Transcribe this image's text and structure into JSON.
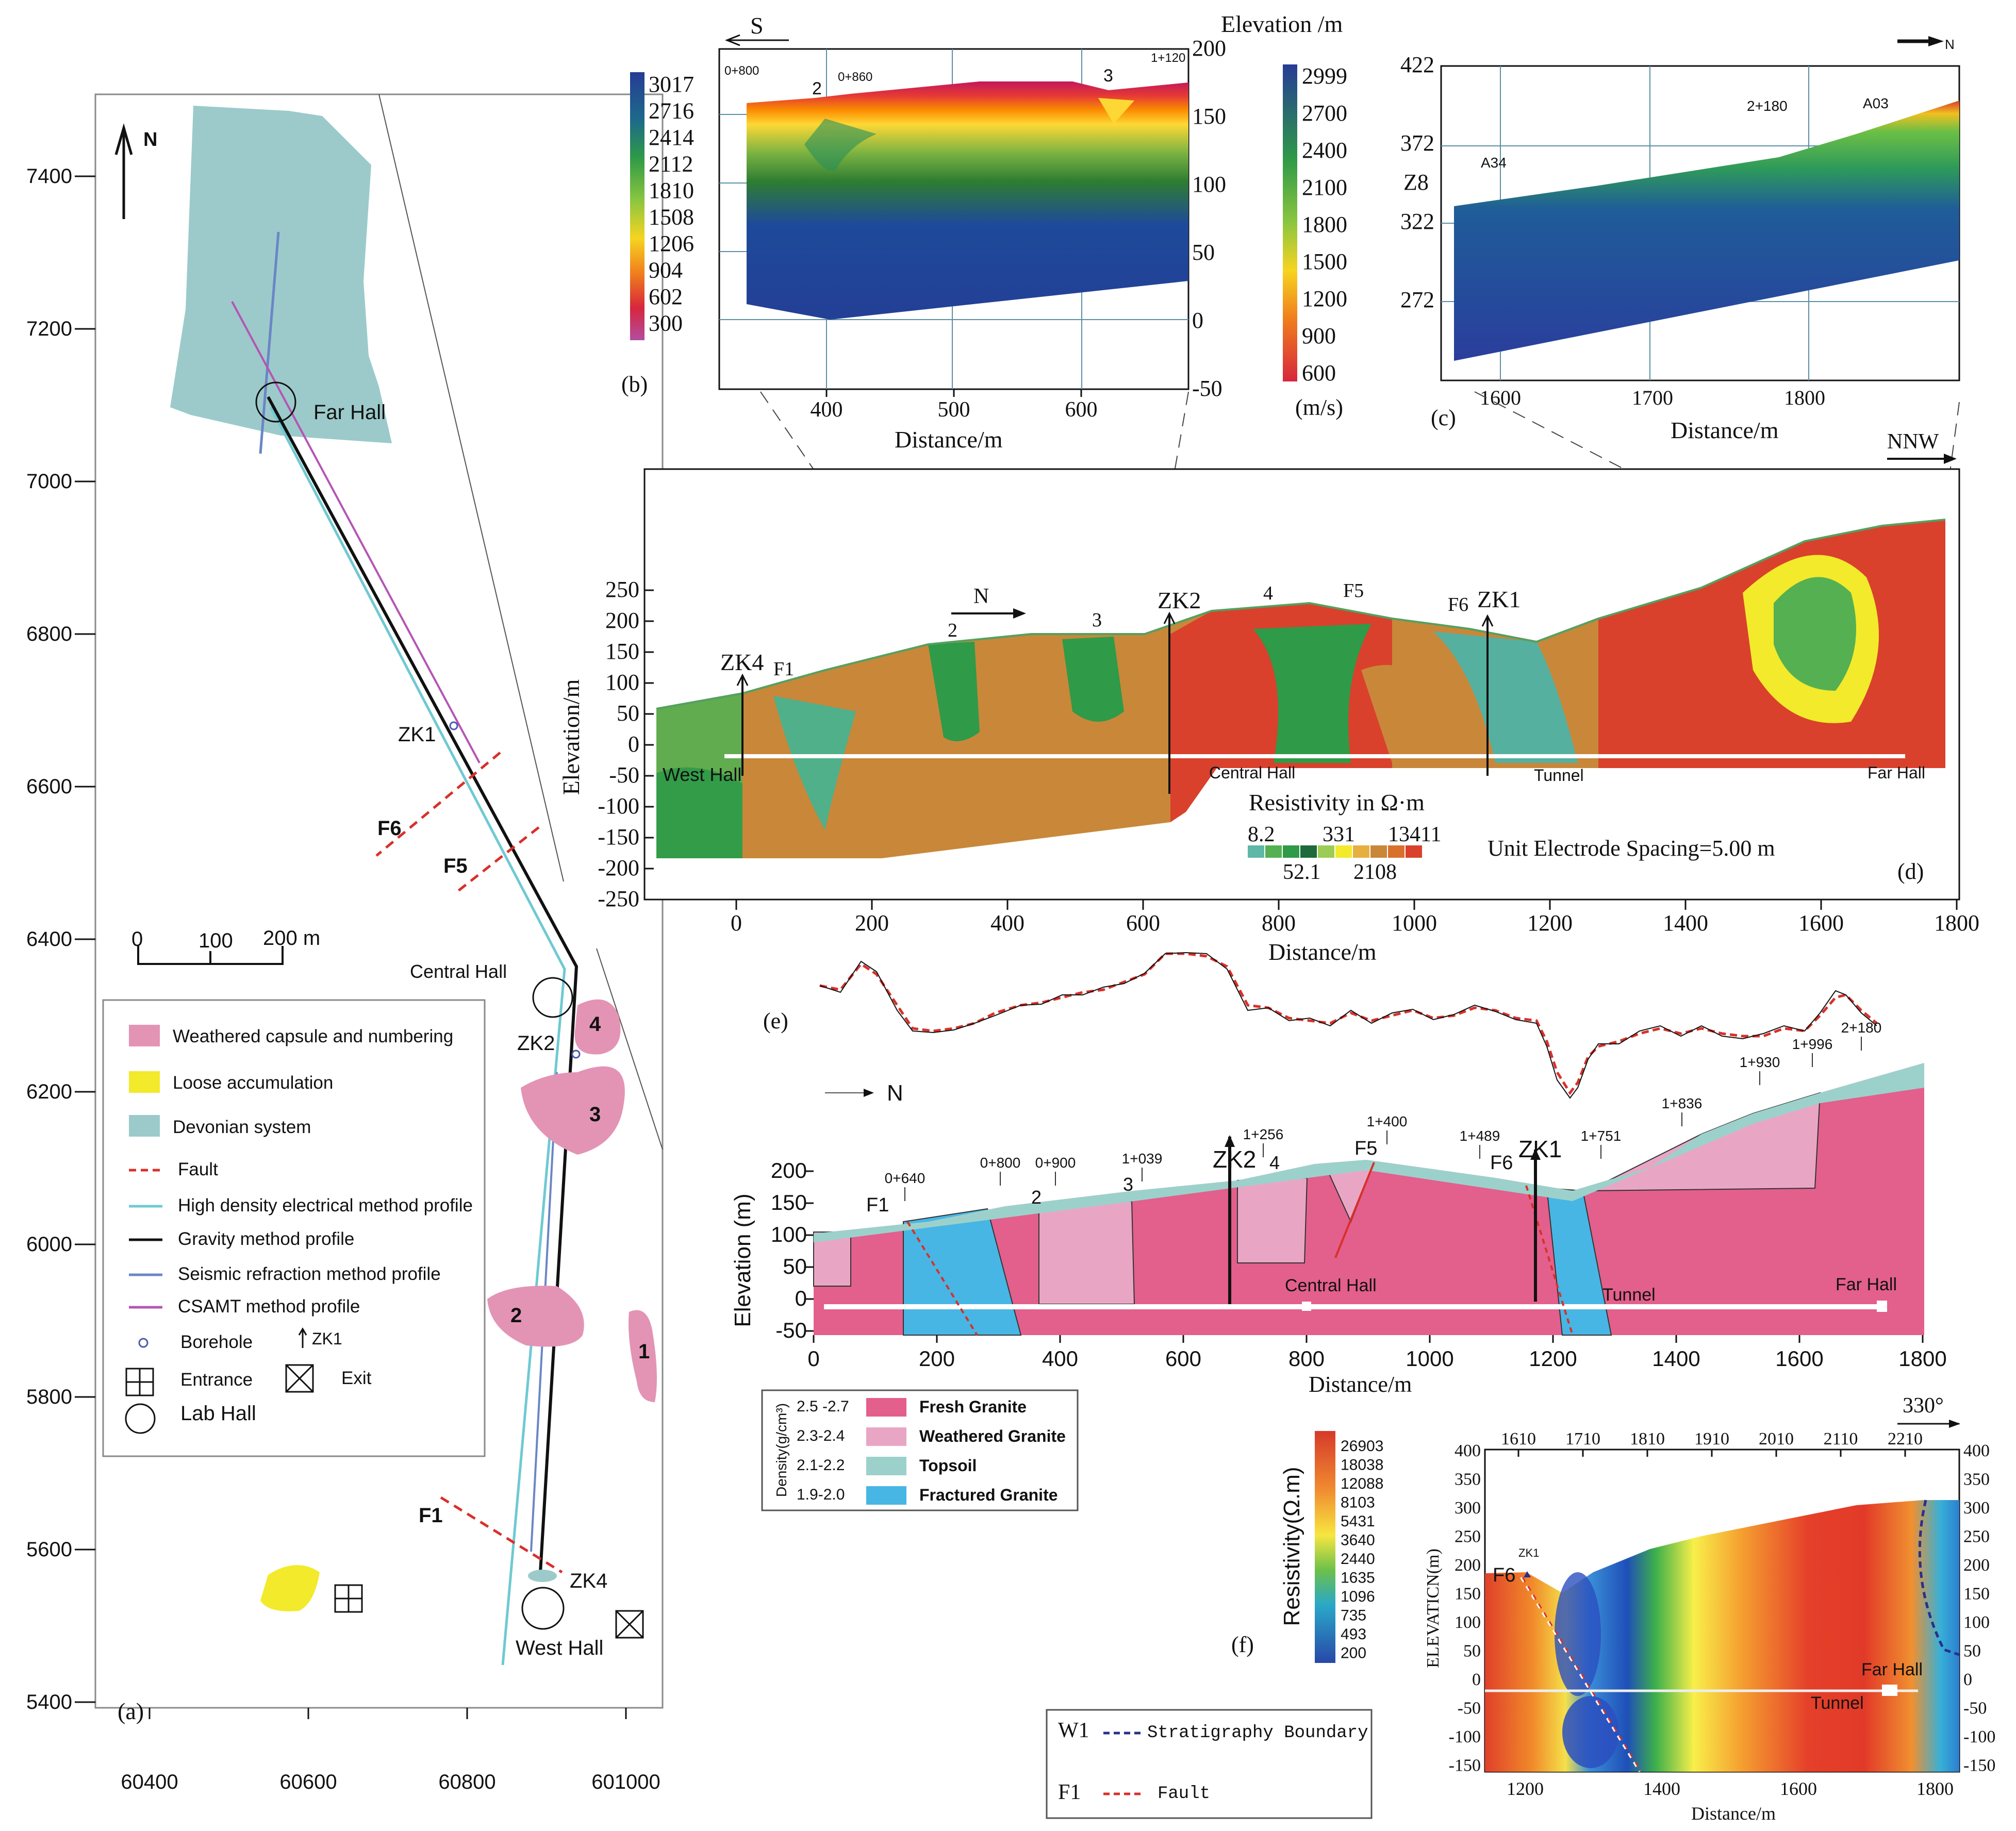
{
  "colors": {
    "devonian": "#9ccaca",
    "capsule": "#e394b4",
    "loose": "#f2ea2a",
    "fault": "#d8302a",
    "high_density": "#6fc9d2",
    "gravity": "#111111",
    "seismic": "#6a86c6",
    "csamt": "#b455b4",
    "fresh": "#e35f8c",
    "weathered": "#e9a6c4",
    "topsoil": "#9cd1cb",
    "fractured": "#47b6e4",
    "velocity_low": "#d81b60",
    "velocity_high": "#23409a",
    "res_brown": "#c9873a",
    "res_red": "#d9412c"
  },
  "panel_a": {
    "label": "(a)",
    "north": "N",
    "x_ticks": [
      "60400",
      "60600",
      "60800",
      "601000"
    ],
    "y_ticks": [
      "7400",
      "7200",
      "7000",
      "6800",
      "6600",
      "6400",
      "6200",
      "6000",
      "5800",
      "5600",
      "5400"
    ],
    "scale_labels": [
      "0",
      "100",
      "200 m"
    ],
    "places": {
      "far_hall": "Far Hall",
      "central_hall": "Central Hall",
      "west_hall": "West Hall",
      "zk1": "ZK1",
      "zk2": "ZK2",
      "zk4": "ZK4"
    },
    "faults": [
      "F6",
      "F5",
      "F1"
    ],
    "capsules": [
      "4",
      "3",
      "2",
      "1"
    ],
    "legend": {
      "capsule": "Weathered capsule and numbering",
      "loose": "Loose accumulation",
      "devonian": "Devonian system",
      "fault": "Fault",
      "high_density": "High density electrical method profile",
      "gravity": "Gravity method profile",
      "seismic": "Seismic refraction method profile",
      "csamt": "CSAMT method profile",
      "borehole": "Borehole",
      "borehole_tag": "ZK1",
      "entrance": "Entrance",
      "exit": "Exit",
      "lab_hall": "Lab Hall"
    }
  },
  "panel_b": {
    "label": "(b)",
    "direction": "S",
    "axis_title": "Elevation /m",
    "x_label": "Distance/m",
    "x_ticks": [
      "400",
      "500",
      "600"
    ],
    "y_ticks": [
      "200",
      "150",
      "100",
      "50",
      "0",
      "-50"
    ],
    "stations": [
      "0+800",
      "0+860",
      "1+120"
    ],
    "capsules": [
      "2",
      "3"
    ],
    "colorbar_left": [
      "3017",
      "2716",
      "2414",
      "2112",
      "1810",
      "1508",
      "1206",
      "904",
      "602",
      "300"
    ],
    "colorbar_right": [
      "2999",
      "2700",
      "2400",
      "2100",
      "1800",
      "1500",
      "1200",
      "900",
      "600"
    ],
    "unit": "(m/s)"
  },
  "panel_c": {
    "label": "(c)",
    "direction": "N",
    "x_label": "Distance/m",
    "x_ticks": [
      "1600",
      "1700",
      "1800"
    ],
    "y_ticks": [
      "422",
      "372",
      "322",
      "272"
    ],
    "y_name": "Z8",
    "stations": [
      "A34",
      "2+180",
      "A03"
    ]
  },
  "panel_d": {
    "label": "(d)",
    "direction": "NNW",
    "north": "N",
    "y_label": "Elevation/m",
    "x_label": "Distance/m",
    "x_ticks": [
      "0",
      "200",
      "400",
      "600",
      "800",
      "1000",
      "1200",
      "1400",
      "1600",
      "1800"
    ],
    "y_ticks": [
      "250",
      "200",
      "150",
      "100",
      "50",
      "0",
      "-50",
      "-100",
      "-150",
      "-200",
      "-250"
    ],
    "boreholes": [
      "ZK4",
      "ZK2",
      "ZK1"
    ],
    "faults": [
      "F1",
      "F5",
      "F6"
    ],
    "capsules": [
      "2",
      "3",
      "4"
    ],
    "places": [
      "West Hall",
      "Central Hall",
      "Tunnel",
      "Far Hall"
    ],
    "res_title": "Resistivity in Ω·m",
    "res_top": [
      "8.2",
      "331",
      "13411"
    ],
    "res_bottom": [
      "52.1",
      "2108"
    ],
    "spacing": "Unit Electrode Spacing=5.00 m"
  },
  "panel_e": {
    "label": "(e)",
    "north": "N",
    "y_label": "Elevation (m)",
    "x_label": "Distance/m",
    "x_ticks": [
      "0",
      "200",
      "400",
      "600",
      "800",
      "1000",
      "1200",
      "1400",
      "1600",
      "1800"
    ],
    "y_ticks": [
      "200",
      "150",
      "100",
      "50",
      "0",
      "-50"
    ],
    "stations": [
      "0+640",
      "0+800",
      "0+900",
      "1+039",
      "1+256",
      "1+400",
      "1+489",
      "1+751",
      "1+836",
      "1+930",
      "1+996",
      "2+180"
    ],
    "boreholes": [
      "ZK2",
      "ZK1"
    ],
    "faults": [
      "F1",
      "F5",
      "F6"
    ],
    "capsules": [
      "2",
      "3",
      "4"
    ],
    "places": [
      "Central Hall",
      "Tunnel",
      "Far Hall"
    ],
    "density_title": "Density(g/cm³)",
    "density_legend": [
      {
        "range": "2.5 -2.7",
        "name": "Fresh Granite"
      },
      {
        "range": "2.3-2.4",
        "name": "Weathered Granite"
      },
      {
        "range": "2.1-2.2",
        "name": "Topsoil"
      },
      {
        "range": "1.9-2.0",
        "name": "Fractured Granite"
      }
    ]
  },
  "panel_f": {
    "label": "(f)",
    "direction": "330°",
    "y_label": "ELEVATICN(m)",
    "x_label": "Distance/m",
    "x_ticks": [
      "1200",
      "1400",
      "1600",
      "1800"
    ],
    "top_ticks": [
      "1610",
      "1710",
      "1810",
      "1910",
      "2010",
      "2110",
      "2210"
    ],
    "y_ticks": [
      "400",
      "350",
      "300",
      "250",
      "200",
      "150",
      "100",
      "50",
      "0",
      "-50",
      "-100",
      "-150"
    ],
    "zk": "ZK1",
    "fault": "F6",
    "places": [
      "Far Hall",
      "Tunnel"
    ],
    "res_title": "Resistivity(Ω.m)",
    "res_ticks": [
      "26903",
      "18038",
      "12088",
      "8103",
      "5431",
      "3640",
      "2440",
      "1635",
      "1096",
      "735",
      "493",
      "200"
    ],
    "legend": [
      {
        "code": "W1",
        "text": "Stratigraphy Boundary"
      },
      {
        "code": "F1",
        "text": "Fault"
      }
    ]
  }
}
